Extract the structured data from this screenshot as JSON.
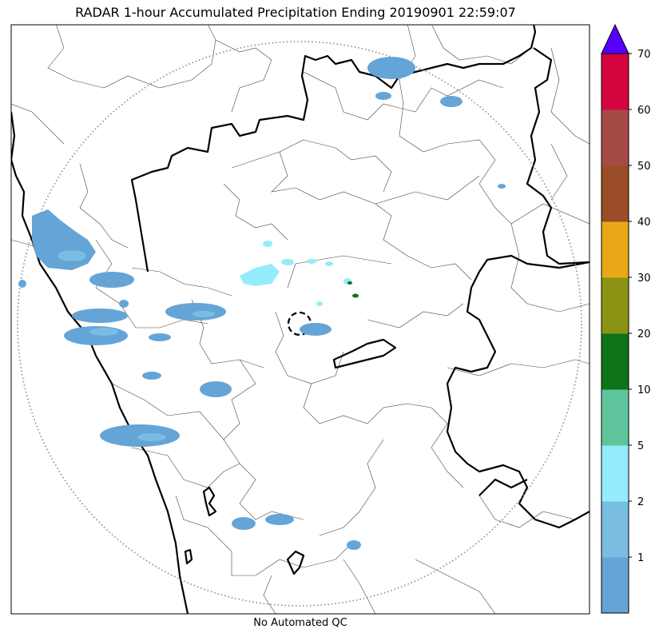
{
  "title": "RADAR 1-hour Accumulated Precipitation Ending 20190901 22:59:07",
  "footer": "No Automated QC",
  "colorbar": {
    "labels": [
      "1",
      "2",
      "5",
      "10",
      "20",
      "30",
      "40",
      "50",
      "60",
      "70"
    ],
    "colors": [
      "#65a4d6",
      "#79bde3",
      "#94ecfa",
      "#5ec49b",
      "#0e7417",
      "#8a9314",
      "#e8a818",
      "#9a4d26",
      "#a64a45",
      "#d2053f"
    ],
    "extend_color": "#5500ff"
  },
  "rain_color": "#65a4d6",
  "rain_light_color": "#79bde3",
  "rain_cyan_color": "#94ecfa"
}
